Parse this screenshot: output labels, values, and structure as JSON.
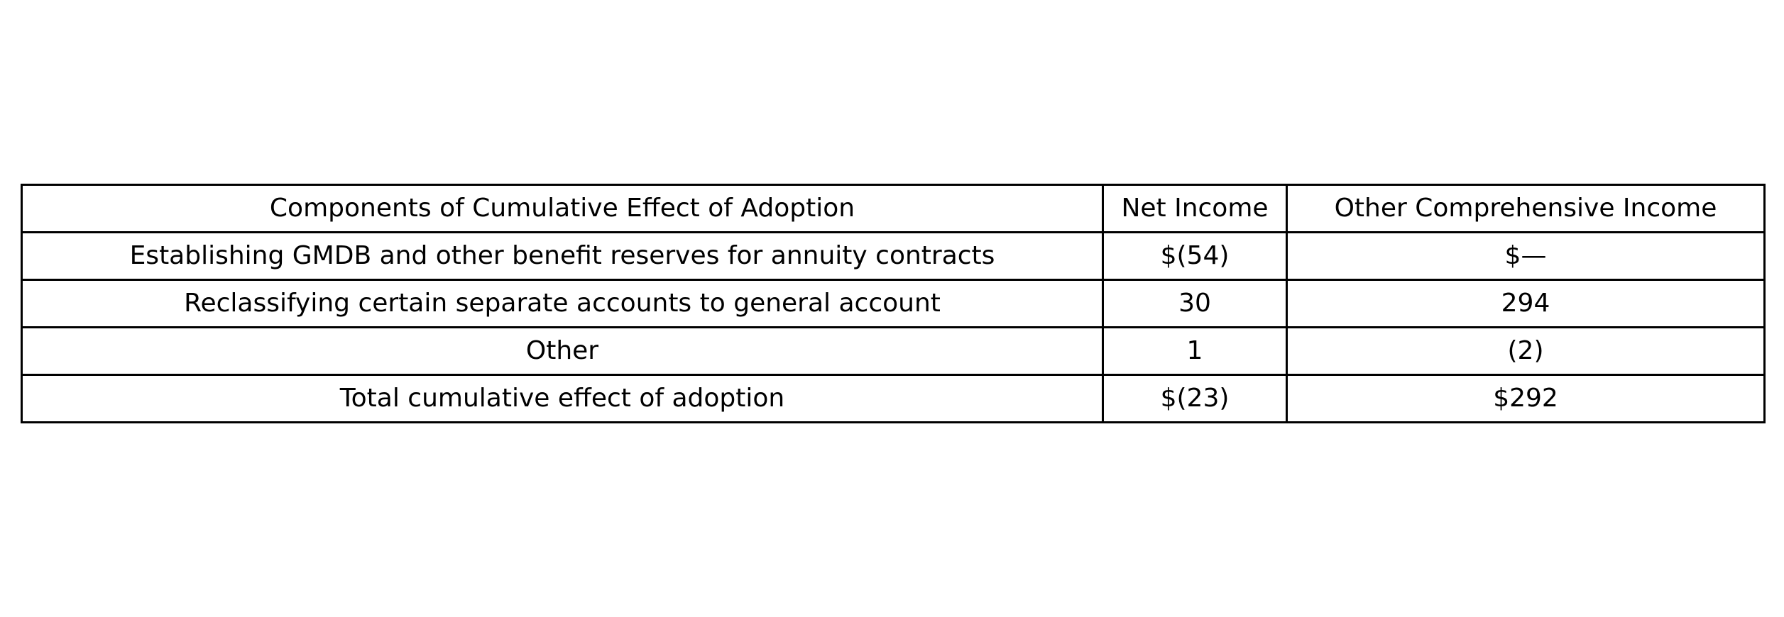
{
  "table": {
    "headers": [
      "Components of Cumulative Effect of Adoption",
      "Net Income",
      "Other Comprehensive Income"
    ],
    "rows": [
      [
        "Establishing GMDB and other benefit reserves for annuity contracts",
        "$(54)",
        "$—"
      ],
      [
        "Reclassifying certain separate accounts to general account",
        "30",
        "294"
      ],
      [
        "Other",
        "1",
        "(2)"
      ],
      [
        "Total cumulative effect of adoption",
        "$(23)",
        "$292"
      ]
    ]
  }
}
